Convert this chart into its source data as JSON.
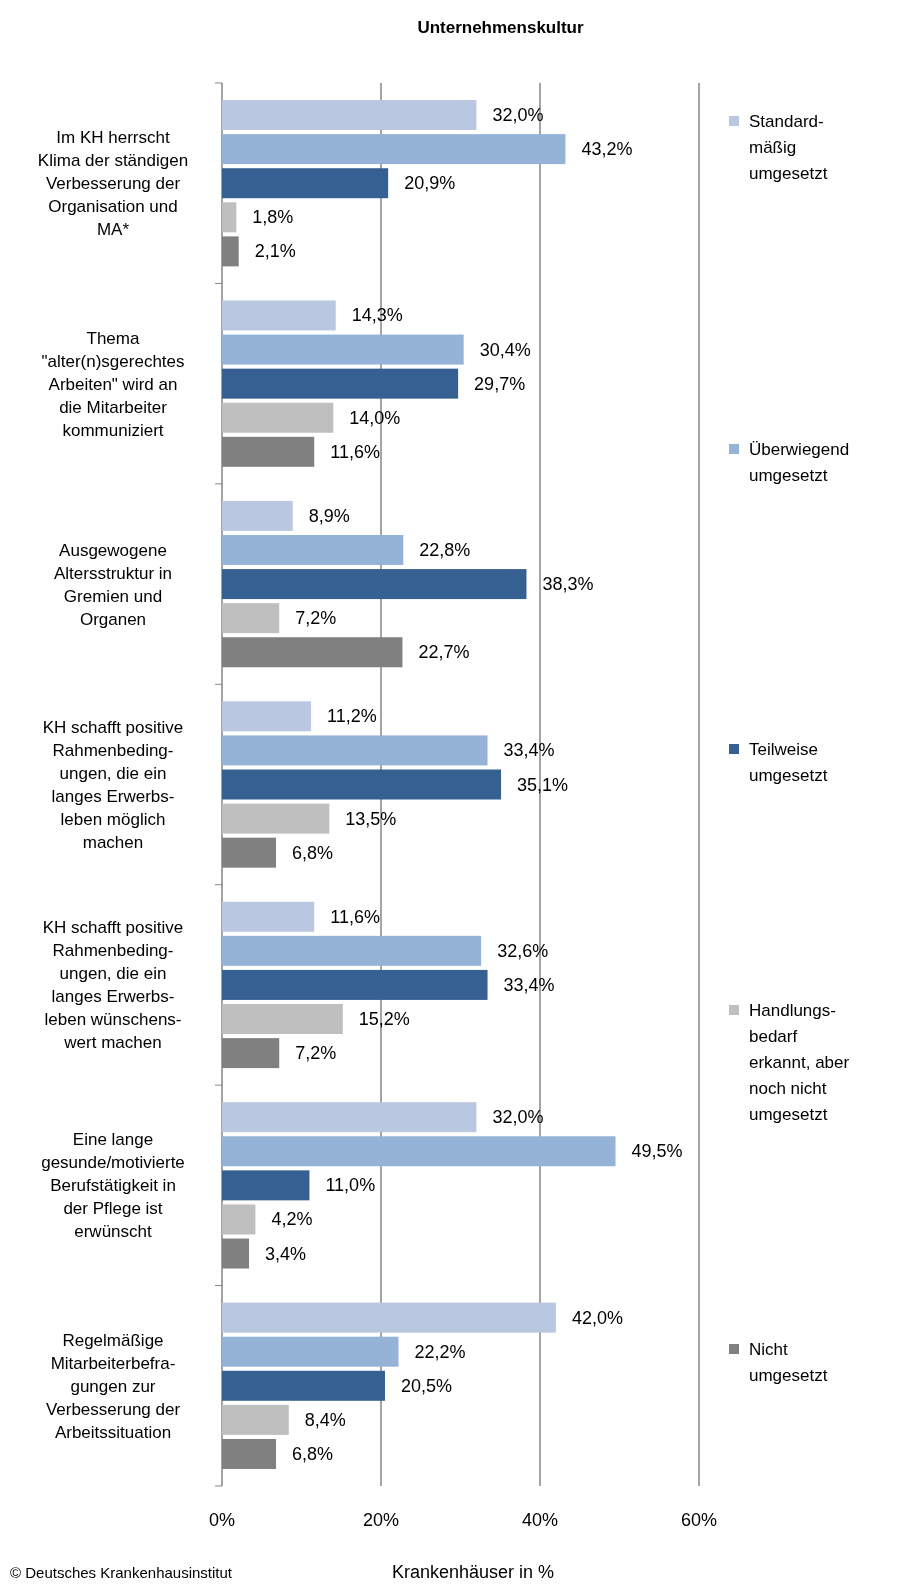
{
  "chart_data": {
    "type": "bar",
    "orientation": "horizontal",
    "title": "Unternehmenskultur",
    "xlabel": "Krankenhäuser in %",
    "categories": [
      "Im KH herrscht\nKlima der ständigen\nVerbesserung der\nOrganisation und\nMA*",
      "Thema\n\"alter(n)sgerechtes\nArbeiten\" wird an\ndie Mitarbeiter\nkommuniziert",
      "Ausgewogene\nAltersstruktur in\nGremien und\nOrganen",
      "KH schafft positive\nRahmenbeding-\nungen, die ein\nlanges Erwerbs-\nleben möglich\nmachen",
      "KH schafft positive\nRahmenbeding-\nungen, die ein\nlanges Erwerbs-\nleben wünschens-\nwert machen",
      "Eine lange\ngesunde/motivierte\nBerufstätigkeit in\nder Pflege ist\nerwünscht",
      "Regelmäßige\nMitarbeiterbefra-\ngungen zur\nVerbesserung der\nArbeitssituation"
    ],
    "series": [
      {
        "name": "Standard-\nmäßig\numgesetzt",
        "color": "#b9c7e0",
        "values": [
          32.0,
          14.3,
          8.9,
          11.2,
          11.6,
          32.0,
          42.0
        ],
        "value_labels": [
          "32,0%",
          "14,3%",
          "8,9%",
          "11,2%",
          "11,6%",
          "32,0%",
          "42,0%"
        ]
      },
      {
        "name": "Überwiegend\numgesetzt",
        "color": "#95b3d7",
        "values": [
          43.2,
          30.4,
          22.8,
          33.4,
          32.6,
          49.5,
          22.2
        ],
        "value_labels": [
          "43,2%",
          "30,4%",
          "22,8%",
          "33,4%",
          "32,6%",
          "49,5%",
          "22,2%"
        ]
      },
      {
        "name": "Teilweise\numgesetzt",
        "color": "#366092",
        "values": [
          20.9,
          29.7,
          38.3,
          35.1,
          33.4,
          11.0,
          20.5
        ],
        "value_labels": [
          "20,9%",
          "29,7%",
          "38,3%",
          "35,1%",
          "33,4%",
          "11,0%",
          "20,5%"
        ]
      },
      {
        "name": "Handlungs-\nbedarf\nerkannt, aber\nnoch nicht\numgesetzt",
        "color": "#bfbfbf",
        "values": [
          1.8,
          14.0,
          7.2,
          13.5,
          15.2,
          4.2,
          8.4
        ],
        "value_labels": [
          "1,8%",
          "14,0%",
          "7,2%",
          "13,5%",
          "15,2%",
          "4,2%",
          "8,4%"
        ]
      },
      {
        "name": "Nicht\numgesetzt",
        "color": "#808080",
        "values": [
          2.1,
          11.6,
          22.7,
          6.8,
          7.2,
          3.4,
          6.8
        ],
        "value_labels": [
          "2,1%",
          "11,6%",
          "22,7%",
          "6,8%",
          "7,2%",
          "3,4%",
          "6,8%"
        ]
      }
    ],
    "xlim": [
      0,
      60
    ],
    "xticks": [
      {
        "value": 0,
        "label": "0%"
      },
      {
        "value": 20,
        "label": "20%"
      },
      {
        "value": 40,
        "label": "40%"
      },
      {
        "value": 60,
        "label": "60%"
      }
    ],
    "grid": "x",
    "legend": "right",
    "annotations": [
      "© Deutsches Krankenhausinstitut"
    ]
  }
}
